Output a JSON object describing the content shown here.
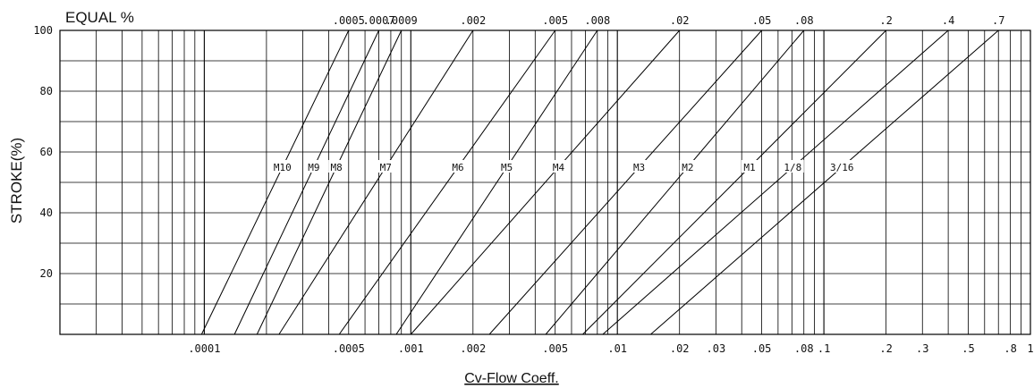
{
  "chart_data": {
    "type": "line",
    "title": "EQUAL %",
    "xlabel": "Cv-Flow Coeff.",
    "ylabel": "STROKE(%)",
    "x_scale": "log",
    "xlim": [
      2e-05,
      1
    ],
    "ylim": [
      0,
      100
    ],
    "x_tick_labels": [
      ".0001",
      ".0005",
      ".001",
      ".002",
      ".005",
      ".01",
      ".02",
      ".03",
      ".05",
      ".08",
      ".1",
      ".2",
      ".3",
      ".5",
      ".8",
      "1"
    ],
    "x_tick_values": [
      0.0001,
      0.0005,
      0.001,
      0.002,
      0.005,
      0.01,
      0.02,
      0.03,
      0.05,
      0.08,
      0.1,
      0.2,
      0.3,
      0.5,
      0.8,
      1
    ],
    "y_ticks": [
      20,
      40,
      60,
      80,
      100
    ],
    "grid": true,
    "series": [
      {
        "name": "M10",
        "cv_at_0": 9.7e-05,
        "cv_at_100": 0.0005,
        "top_label": ".0005"
      },
      {
        "name": "M9",
        "cv_at_0": 0.00014,
        "cv_at_100": 0.0007,
        "top_label": ".0007"
      },
      {
        "name": "M8",
        "cv_at_0": 0.00018,
        "cv_at_100": 0.0009,
        "top_label": ".0009"
      },
      {
        "name": "M7",
        "cv_at_0": 0.00023,
        "cv_at_100": 0.002,
        "top_label": ".002"
      },
      {
        "name": "M6",
        "cv_at_0": 0.00045,
        "cv_at_100": 0.005,
        "top_label": ".005"
      },
      {
        "name": "M5",
        "cv_at_0": 0.00085,
        "cv_at_100": 0.008,
        "top_label": ".008"
      },
      {
        "name": "M4",
        "cv_at_0": 0.001,
        "cv_at_100": 0.02,
        "top_label": ".02"
      },
      {
        "name": "M3",
        "cv_at_0": 0.0024,
        "cv_at_100": 0.05,
        "top_label": ".05"
      },
      {
        "name": "M2",
        "cv_at_0": 0.0045,
        "cv_at_100": 0.08,
        "top_label": ".08"
      },
      {
        "name": "M1",
        "cv_at_0": 0.0068,
        "cv_at_100": 0.2,
        "top_label": ".2"
      },
      {
        "name": "1/8",
        "cv_at_0": 0.0085,
        "cv_at_100": 0.4,
        "top_label": ".4"
      },
      {
        "name": "3/16",
        "cv_at_0": 0.0145,
        "cv_at_100": 0.7,
        "top_label": ".7"
      }
    ]
  }
}
